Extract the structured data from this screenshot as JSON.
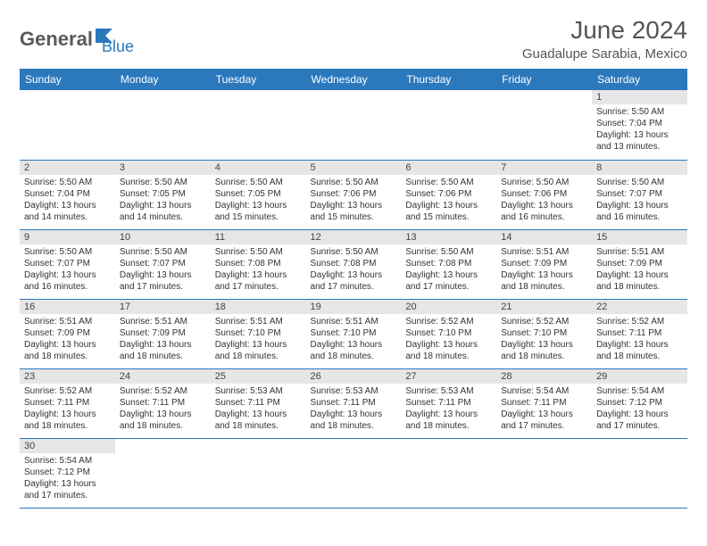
{
  "logo": {
    "text1": "General",
    "text2": "Blue"
  },
  "title": "June 2024",
  "location": "Guadalupe Sarabia, Mexico",
  "colors": {
    "header_bg": "#2b78bd",
    "header_text": "#ffffff",
    "daynum_bg": "#e6e6e6",
    "row_border": "#2b78bd",
    "title_color": "#555555",
    "body_text": "#333333"
  },
  "fonts": {
    "title_size": 28,
    "location_size": 15,
    "weekday_size": 12,
    "daynum_size": 11,
    "body_size": 10
  },
  "weekdays": [
    "Sunday",
    "Monday",
    "Tuesday",
    "Wednesday",
    "Thursday",
    "Friday",
    "Saturday"
  ],
  "weeks": [
    [
      null,
      null,
      null,
      null,
      null,
      null,
      {
        "n": "1",
        "sunrise": "5:50 AM",
        "sunset": "7:04 PM",
        "daylight": "13 hours and 13 minutes."
      }
    ],
    [
      {
        "n": "2",
        "sunrise": "5:50 AM",
        "sunset": "7:04 PM",
        "daylight": "13 hours and 14 minutes."
      },
      {
        "n": "3",
        "sunrise": "5:50 AM",
        "sunset": "7:05 PM",
        "daylight": "13 hours and 14 minutes."
      },
      {
        "n": "4",
        "sunrise": "5:50 AM",
        "sunset": "7:05 PM",
        "daylight": "13 hours and 15 minutes."
      },
      {
        "n": "5",
        "sunrise": "5:50 AM",
        "sunset": "7:06 PM",
        "daylight": "13 hours and 15 minutes."
      },
      {
        "n": "6",
        "sunrise": "5:50 AM",
        "sunset": "7:06 PM",
        "daylight": "13 hours and 15 minutes."
      },
      {
        "n": "7",
        "sunrise": "5:50 AM",
        "sunset": "7:06 PM",
        "daylight": "13 hours and 16 minutes."
      },
      {
        "n": "8",
        "sunrise": "5:50 AM",
        "sunset": "7:07 PM",
        "daylight": "13 hours and 16 minutes."
      }
    ],
    [
      {
        "n": "9",
        "sunrise": "5:50 AM",
        "sunset": "7:07 PM",
        "daylight": "13 hours and 16 minutes."
      },
      {
        "n": "10",
        "sunrise": "5:50 AM",
        "sunset": "7:07 PM",
        "daylight": "13 hours and 17 minutes."
      },
      {
        "n": "11",
        "sunrise": "5:50 AM",
        "sunset": "7:08 PM",
        "daylight": "13 hours and 17 minutes."
      },
      {
        "n": "12",
        "sunrise": "5:50 AM",
        "sunset": "7:08 PM",
        "daylight": "13 hours and 17 minutes."
      },
      {
        "n": "13",
        "sunrise": "5:50 AM",
        "sunset": "7:08 PM",
        "daylight": "13 hours and 17 minutes."
      },
      {
        "n": "14",
        "sunrise": "5:51 AM",
        "sunset": "7:09 PM",
        "daylight": "13 hours and 18 minutes."
      },
      {
        "n": "15",
        "sunrise": "5:51 AM",
        "sunset": "7:09 PM",
        "daylight": "13 hours and 18 minutes."
      }
    ],
    [
      {
        "n": "16",
        "sunrise": "5:51 AM",
        "sunset": "7:09 PM",
        "daylight": "13 hours and 18 minutes."
      },
      {
        "n": "17",
        "sunrise": "5:51 AM",
        "sunset": "7:09 PM",
        "daylight": "13 hours and 18 minutes."
      },
      {
        "n": "18",
        "sunrise": "5:51 AM",
        "sunset": "7:10 PM",
        "daylight": "13 hours and 18 minutes."
      },
      {
        "n": "19",
        "sunrise": "5:51 AM",
        "sunset": "7:10 PM",
        "daylight": "13 hours and 18 minutes."
      },
      {
        "n": "20",
        "sunrise": "5:52 AM",
        "sunset": "7:10 PM",
        "daylight": "13 hours and 18 minutes."
      },
      {
        "n": "21",
        "sunrise": "5:52 AM",
        "sunset": "7:10 PM",
        "daylight": "13 hours and 18 minutes."
      },
      {
        "n": "22",
        "sunrise": "5:52 AM",
        "sunset": "7:11 PM",
        "daylight": "13 hours and 18 minutes."
      }
    ],
    [
      {
        "n": "23",
        "sunrise": "5:52 AM",
        "sunset": "7:11 PM",
        "daylight": "13 hours and 18 minutes."
      },
      {
        "n": "24",
        "sunrise": "5:52 AM",
        "sunset": "7:11 PM",
        "daylight": "13 hours and 18 minutes."
      },
      {
        "n": "25",
        "sunrise": "5:53 AM",
        "sunset": "7:11 PM",
        "daylight": "13 hours and 18 minutes."
      },
      {
        "n": "26",
        "sunrise": "5:53 AM",
        "sunset": "7:11 PM",
        "daylight": "13 hours and 18 minutes."
      },
      {
        "n": "27",
        "sunrise": "5:53 AM",
        "sunset": "7:11 PM",
        "daylight": "13 hours and 18 minutes."
      },
      {
        "n": "28",
        "sunrise": "5:54 AM",
        "sunset": "7:11 PM",
        "daylight": "13 hours and 17 minutes."
      },
      {
        "n": "29",
        "sunrise": "5:54 AM",
        "sunset": "7:12 PM",
        "daylight": "13 hours and 17 minutes."
      }
    ],
    [
      {
        "n": "30",
        "sunrise": "5:54 AM",
        "sunset": "7:12 PM",
        "daylight": "13 hours and 17 minutes."
      },
      null,
      null,
      null,
      null,
      null,
      null
    ]
  ],
  "labels": {
    "sunrise": "Sunrise:",
    "sunset": "Sunset:",
    "daylight": "Daylight:"
  }
}
